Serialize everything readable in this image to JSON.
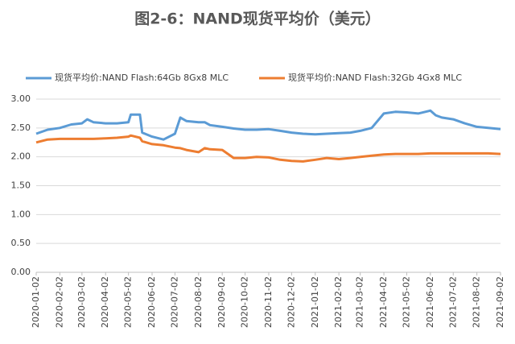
{
  "chart_data": {
    "type": "line",
    "title": "图2-6：NAND现货平均价（美元）",
    "x": [
      "2020-01-02",
      "2020-01-17",
      "2020-02-02",
      "2020-02-17",
      "2020-03-02",
      "2020-03-09",
      "2020-03-17",
      "2020-04-02",
      "2020-04-17",
      "2020-05-02",
      "2020-05-05",
      "2020-05-17",
      "2020-05-20",
      "2020-06-02",
      "2020-06-17",
      "2020-07-02",
      "2020-07-09",
      "2020-07-17",
      "2020-08-02",
      "2020-08-10",
      "2020-08-17",
      "2020-09-02",
      "2020-09-17",
      "2020-10-02",
      "2020-10-17",
      "2020-11-02",
      "2020-11-17",
      "2020-12-02",
      "2020-12-17",
      "2021-01-02",
      "2021-01-17",
      "2021-02-02",
      "2021-02-17",
      "2021-03-02",
      "2021-03-17",
      "2021-04-02",
      "2021-04-17",
      "2021-05-02",
      "2021-05-17",
      "2021-06-02",
      "2021-06-09",
      "2021-06-17",
      "2021-07-02",
      "2021-07-17",
      "2021-08-02",
      "2021-08-17",
      "2021-09-02"
    ],
    "series": [
      {
        "name": "现货平均价:NAND Flash:64Gb 8Gx8 MLC",
        "color": "#5b9bd5",
        "values": [
          2.4,
          2.47,
          2.5,
          2.56,
          2.58,
          2.65,
          2.6,
          2.58,
          2.58,
          2.6,
          2.73,
          2.73,
          2.42,
          2.35,
          2.3,
          2.4,
          2.68,
          2.62,
          2.6,
          2.6,
          2.55,
          2.52,
          2.49,
          2.47,
          2.47,
          2.48,
          2.45,
          2.42,
          2.4,
          2.39,
          2.4,
          2.41,
          2.42,
          2.45,
          2.5,
          2.75,
          2.78,
          2.77,
          2.75,
          2.8,
          2.72,
          2.68,
          2.65,
          2.58,
          2.52,
          2.5,
          2.48
        ]
      },
      {
        "name": "现货平均价:NAND Flash:32Gb 4Gx8 MLC",
        "color": "#ed7d31",
        "values": [
          2.25,
          2.3,
          2.31,
          2.31,
          2.31,
          2.31,
          2.31,
          2.32,
          2.33,
          2.35,
          2.37,
          2.33,
          2.27,
          2.22,
          2.2,
          2.16,
          2.15,
          2.12,
          2.08,
          2.15,
          2.13,
          2.12,
          1.98,
          1.98,
          2.0,
          1.99,
          1.95,
          1.93,
          1.92,
          1.95,
          1.98,
          1.96,
          1.98,
          2.0,
          2.02,
          2.04,
          2.05,
          2.05,
          2.05,
          2.06,
          2.06,
          2.06,
          2.06,
          2.06,
          2.06,
          2.06,
          2.05
        ]
      }
    ],
    "xlim": [
      "2020-01-02",
      "2021-09-02"
    ],
    "xticks": [
      "2020-01-02",
      "2020-02-02",
      "2020-03-02",
      "2020-04-02",
      "2020-05-02",
      "2020-06-02",
      "2020-07-02",
      "2020-08-02",
      "2020-09-02",
      "2020-10-02",
      "2020-11-02",
      "2020-12-02",
      "2021-01-02",
      "2021-02-02",
      "2021-03-02",
      "2021-04-02",
      "2021-05-02",
      "2021-06-02",
      "2021-07-02",
      "2021-08-02",
      "2021-09-02"
    ],
    "ylim": [
      0,
      3
    ],
    "yticks": [
      {
        "value": 0,
        "label": "0.00"
      },
      {
        "value": 0.5,
        "label": "0.50"
      },
      {
        "value": 1,
        "label": "1.00"
      },
      {
        "value": 1.5,
        "label": "1.50"
      },
      {
        "value": 2,
        "label": "2.00"
      },
      {
        "value": 2.5,
        "label": "2.50"
      },
      {
        "value": 3,
        "label": "3.00"
      }
    ],
    "grid": true,
    "legend": "top"
  }
}
